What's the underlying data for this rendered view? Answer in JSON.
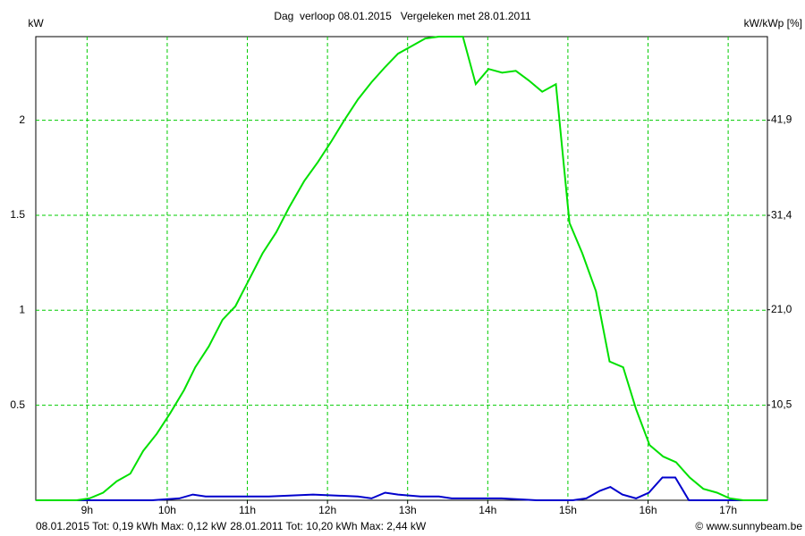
{
  "chart_data": {
    "type": "line",
    "title": "Dag  verloop 08.01.2015   Vergeleken met 28.01.2011",
    "y_label": "kW",
    "y2_label": "kW/kWp [%]",
    "xlim": [
      8.36,
      17.49
    ],
    "xticks": [
      {
        "value": 9,
        "label": "9h"
      },
      {
        "value": 10,
        "label": "10h"
      },
      {
        "value": 11,
        "label": "11h"
      },
      {
        "value": 12,
        "label": "12h"
      },
      {
        "value": 13,
        "label": "13h"
      },
      {
        "value": 14,
        "label": "14h"
      },
      {
        "value": 15,
        "label": "15h"
      },
      {
        "value": 16,
        "label": "16h"
      },
      {
        "value": 17,
        "label": "17h"
      }
    ],
    "ylim": [
      0,
      2.44
    ],
    "yticks": [
      0.5,
      1,
      1.5,
      2
    ],
    "y2lim": [
      0,
      51.1
    ],
    "y2ticks": [
      {
        "value": 10.5,
        "label": "10,5"
      },
      {
        "value": 21,
        "label": "21,0"
      },
      {
        "value": 31.4,
        "label": "31,4"
      },
      {
        "value": 41.9,
        "label": "41,9"
      }
    ],
    "grid": true,
    "series": [
      {
        "name": "08.01.2015 Tot: 0,19 kWh Max: 0,12 kW",
        "color": "#0000cc",
        "x": [
          8.36,
          9.81,
          10.15,
          10.32,
          10.48,
          11.27,
          11.82,
          12.38,
          12.55,
          12.72,
          12.88,
          13.16,
          13.39,
          13.55,
          13.94,
          14.17,
          14.61,
          15.06,
          15.23,
          15.4,
          15.53,
          15.68,
          15.85,
          16.01,
          16.18,
          16.34,
          16.51,
          17.49
        ],
        "values": [
          0,
          0,
          0.01,
          0.03,
          0.02,
          0.02,
          0.03,
          0.02,
          0.01,
          0.04,
          0.03,
          0.02,
          0.02,
          0.01,
          0.01,
          0.01,
          0,
          0,
          0.01,
          0.05,
          0.07,
          0.03,
          0.01,
          0.04,
          0.12,
          0.12,
          0,
          0
        ]
      },
      {
        "name": "28.01.2011 Tot: 10,20 kWh Max: 2,44 kW",
        "color": "#00e000",
        "x": [
          8.36,
          8.87,
          9.03,
          9.2,
          9.37,
          9.54,
          9.7,
          9.87,
          10.04,
          10.21,
          10.35,
          10.52,
          10.69,
          10.85,
          11.02,
          11.19,
          11.36,
          11.52,
          11.71,
          11.88,
          12.05,
          12.21,
          12.38,
          12.55,
          12.72,
          12.88,
          13.05,
          13.22,
          13.39,
          13.69,
          13.85,
          14.01,
          14.18,
          14.35,
          14.51,
          14.68,
          14.85,
          15.02,
          15.18,
          15.35,
          15.52,
          15.69,
          15.85,
          16.02,
          16.19,
          16.35,
          16.52,
          16.69,
          16.86,
          17.02,
          17.19,
          17.49
        ],
        "values": [
          0,
          0,
          0.01,
          0.04,
          0.1,
          0.14,
          0.26,
          0.35,
          0.46,
          0.58,
          0.7,
          0.81,
          0.95,
          1.02,
          1.16,
          1.3,
          1.41,
          1.54,
          1.68,
          1.78,
          1.89,
          2.0,
          2.11,
          2.2,
          2.28,
          2.35,
          2.39,
          2.43,
          2.44,
          2.44,
          2.19,
          2.27,
          2.25,
          2.26,
          2.21,
          2.15,
          2.19,
          1.46,
          1.3,
          1.1,
          0.73,
          0.7,
          0.48,
          0.29,
          0.23,
          0.2,
          0.12,
          0.06,
          0.04,
          0.01,
          0,
          0
        ]
      }
    ],
    "credit": "© www.sunnybeam.be"
  }
}
